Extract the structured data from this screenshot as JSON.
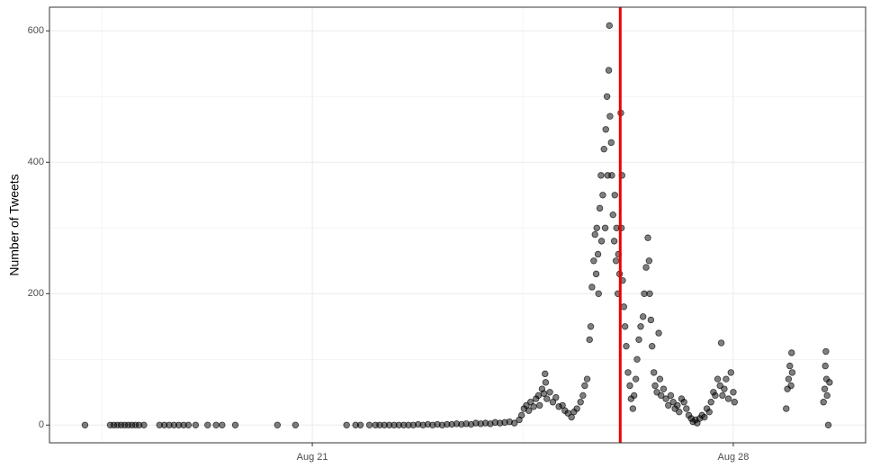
{
  "chart_data": {
    "type": "scatter",
    "y_label": "Number of Tweets",
    "x": [
      17.22,
      17.64,
      17.7,
      17.76,
      17.82,
      17.88,
      17.94,
      18.0,
      18.06,
      18.12,
      18.2,
      18.46,
      18.54,
      18.62,
      18.7,
      18.78,
      18.86,
      18.94,
      19.06,
      19.26,
      19.4,
      19.5,
      19.72,
      20.42,
      20.72,
      21.57,
      21.72,
      21.8,
      21.95,
      22.05,
      22.12,
      22.2,
      22.28,
      22.36,
      22.44,
      22.52,
      22.6,
      22.68,
      22.76,
      22.84,
      22.92,
      23.0,
      23.08,
      23.16,
      23.24,
      23.32,
      23.4,
      23.48,
      23.56,
      23.64,
      23.72,
      23.8,
      23.88,
      23.96,
      24.04,
      24.12,
      24.2,
      24.28,
      24.36,
      24.44,
      24.48,
      24.52,
      24.56,
      24.6,
      24.63,
      24.68,
      24.72,
      24.76,
      24.78,
      24.82,
      24.85,
      24.87,
      24.88,
      24.9,
      24.95,
      25.0,
      25.05,
      25.1,
      25.16,
      25.2,
      25.25,
      25.31,
      25.35,
      25.4,
      25.46,
      25.5,
      25.53,
      25.57,
      25.61,
      25.63,
      25.65,
      25.68,
      25.7,
      25.72,
      25.73,
      25.75,
      25.76,
      25.78,
      25.8,
      25.81,
      25.83,
      25.85,
      25.87,
      25.88,
      25.9,
      25.91,
      25.93,
      25.94,
      25.95,
      25.97,
      25.98,
      26.0,
      26.02,
      26.03,
      26.05,
      26.06,
      26.08,
      26.09,
      26.11,
      26.13,
      26.14,
      26.15,
      26.16,
      26.18,
      26.2,
      26.22,
      26.25,
      26.28,
      26.3,
      26.33,
      26.35,
      26.38,
      26.4,
      26.43,
      26.46,
      26.5,
      26.52,
      26.55,
      26.58,
      26.6,
      26.61,
      26.63,
      26.65,
      26.68,
      26.7,
      26.73,
      26.76,
      26.78,
      26.8,
      26.84,
      26.88,
      26.92,
      26.96,
      27.0,
      27.03,
      27.07,
      27.1,
      27.14,
      27.18,
      27.22,
      27.26,
      27.3,
      27.33,
      27.37,
      27.4,
      27.44,
      27.48,
      27.52,
      27.56,
      27.6,
      27.63,
      27.67,
      27.7,
      27.74,
      27.78,
      27.8,
      27.82,
      27.85,
      27.88,
      27.92,
      27.96,
      28.0,
      28.02,
      28.88,
      28.9,
      28.92,
      28.94,
      28.96,
      28.97,
      28.98,
      29.5,
      29.52,
      29.53,
      29.54,
      29.55,
      29.56,
      29.58,
      29.6
    ],
    "values": [
      0,
      0,
      0,
      0,
      0,
      0,
      0,
      0,
      0,
      0,
      0,
      0,
      0,
      0,
      0,
      0,
      0,
      0,
      0,
      0,
      0,
      0,
      0,
      0,
      0,
      0,
      0,
      0,
      0,
      0,
      0,
      0,
      0,
      0,
      0,
      0,
      0,
      0,
      1,
      0,
      1,
      0,
      1,
      0,
      1,
      1,
      2,
      1,
      2,
      1,
      3,
      2,
      3,
      2,
      4,
      3,
      4,
      5,
      3,
      8,
      15,
      25,
      30,
      22,
      35,
      28,
      40,
      45,
      30,
      55,
      48,
      78,
      65,
      40,
      50,
      35,
      42,
      28,
      30,
      22,
      18,
      12,
      20,
      25,
      35,
      45,
      60,
      70,
      130,
      150,
      210,
      250,
      290,
      230,
      300,
      260,
      200,
      330,
      380,
      280,
      350,
      420,
      300,
      450,
      500,
      380,
      540,
      608,
      470,
      430,
      380,
      320,
      280,
      350,
      250,
      300,
      200,
      260,
      230,
      475,
      300,
      380,
      220,
      180,
      150,
      120,
      80,
      60,
      40,
      25,
      45,
      70,
      100,
      130,
      150,
      165,
      200,
      240,
      285,
      250,
      200,
      160,
      120,
      80,
      60,
      50,
      140,
      70,
      45,
      55,
      40,
      30,
      45,
      35,
      25,
      30,
      20,
      40,
      35,
      25,
      15,
      10,
      5,
      8,
      3,
      10,
      15,
      12,
      25,
      20,
      35,
      50,
      45,
      70,
      60,
      125,
      45,
      55,
      70,
      40,
      80,
      50,
      35,
      25,
      55,
      70,
      90,
      60,
      110,
      80,
      35,
      55,
      90,
      112,
      70,
      45,
      0,
      65
    ],
    "color": "#000000",
    "opacity": 0.5,
    "xlim": [
      16.63,
      30.2
    ],
    "ylim": [
      -27,
      636
    ],
    "xticks": [
      {
        "value": 21,
        "label": "Aug 21"
      },
      {
        "value": 28,
        "label": "Aug 28"
      }
    ],
    "yticks": [
      0,
      200,
      400,
      600
    ],
    "grid": true,
    "vline": {
      "x": 26.12,
      "color": "#ee0000"
    }
  }
}
